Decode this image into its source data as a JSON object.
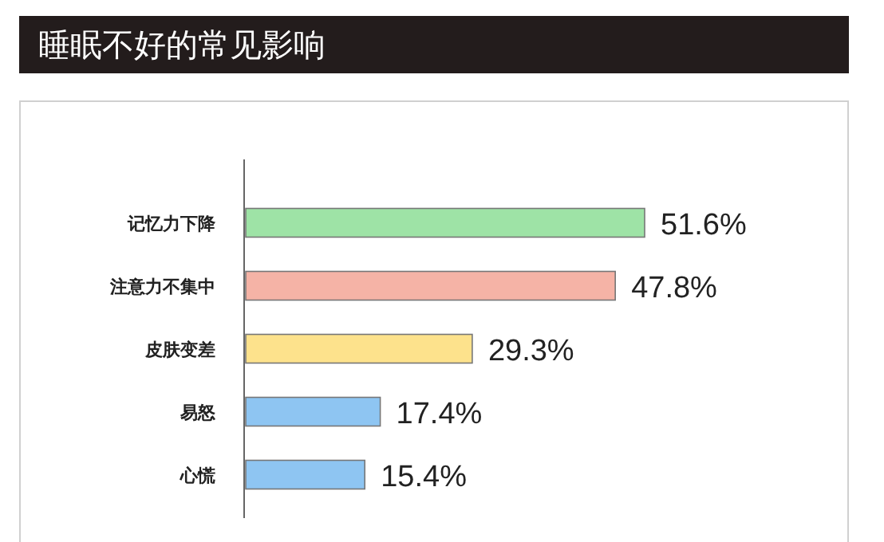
{
  "chart_data": {
    "type": "bar",
    "orientation": "horizontal",
    "title": "睡眠不好的常见影响",
    "categories": [
      "记忆力下降",
      "注意力不集中",
      "皮肤变差",
      "易怒",
      "心慌"
    ],
    "values": [
      51.6,
      47.8,
      29.3,
      17.4,
      15.4
    ],
    "colors": [
      "#9ee3a6",
      "#f5b3a6",
      "#fde28c",
      "#8ec5f2",
      "#8ec5f2"
    ],
    "value_labels": [
      "51.6%",
      "47.8%",
      "29.3%",
      "17.4%",
      "15.4%"
    ]
  }
}
